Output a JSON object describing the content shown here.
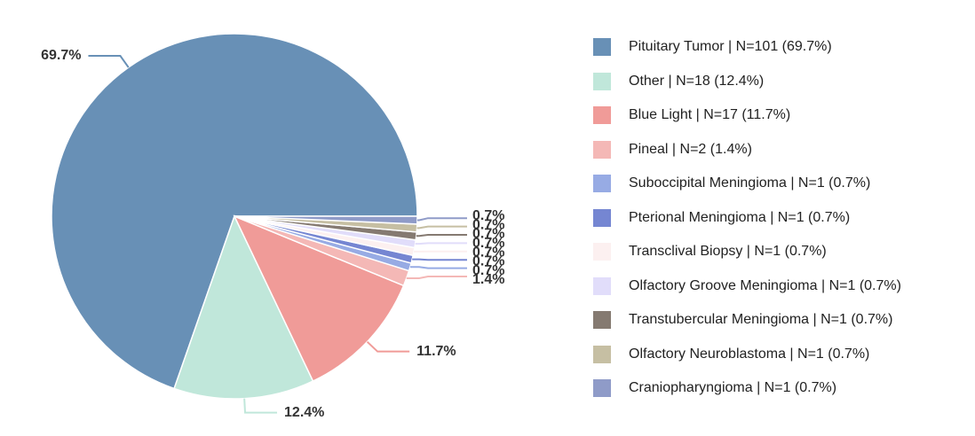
{
  "chart_data": {
    "type": "pie",
    "title": "",
    "slices": [
      {
        "name": "Pituitary Tumor",
        "count": 101,
        "percent": 69.7,
        "label": "69.7%",
        "legend": "Pituitary Tumor | N=101 (69.7%)",
        "color": "#6890b6"
      },
      {
        "name": "Other",
        "count": 18,
        "percent": 12.4,
        "label": "12.4%",
        "legend": "Other | N=18 (12.4%)",
        "color": "#c0e7da"
      },
      {
        "name": "Blue Light",
        "count": 17,
        "percent": 11.7,
        "label": "11.7%",
        "legend": "Blue Light | N=17 (11.7%)",
        "color": "#f09b98"
      },
      {
        "name": "Pineal",
        "count": 2,
        "percent": 1.4,
        "label": "1.4%",
        "legend": "Pineal | N=2 (1.4%)",
        "color": "#f4b8b6"
      },
      {
        "name": "Suboccipital Meningioma",
        "count": 1,
        "percent": 0.7,
        "label": "0.7%",
        "legend": "Suboccipital Meningioma | N=1 (0.7%)",
        "color": "#97abe4"
      },
      {
        "name": "Pterional Meningioma",
        "count": 1,
        "percent": 0.7,
        "label": "0.7%",
        "legend": "Pterional Meningioma | N=1 (0.7%)",
        "color": "#7586d2"
      },
      {
        "name": "Transclival Biopsy",
        "count": 1,
        "percent": 0.7,
        "label": "0.7%",
        "legend": "Transclival Biopsy | N=1 (0.7%)",
        "color": "#fcf0f0"
      },
      {
        "name": "Olfactory Groove Meningioma",
        "count": 1,
        "percent": 0.7,
        "label": "0.7%",
        "legend": "Olfactory Groove Meningioma | N=1 (0.7%)",
        "color": "#e1ddfa"
      },
      {
        "name": "Transtubercular Meningioma",
        "count": 1,
        "percent": 0.7,
        "label": "0.7%",
        "legend": "Transtubercular Meningioma | N=1 (0.7%)",
        "color": "#857a71"
      },
      {
        "name": "Olfactory Neuroblastoma",
        "count": 1,
        "percent": 0.7,
        "label": "0.7%",
        "legend": "Olfactory Neuroblastoma | N=1 (0.7%)",
        "color": "#c6bfa3"
      },
      {
        "name": "Craniopharyngioma",
        "count": 1,
        "percent": 0.7,
        "label": "0.7%",
        "legend": "Craniopharyngioma | N=1 (0.7%)",
        "color": "#8f9bc8"
      }
    ],
    "legend_position": "right"
  }
}
